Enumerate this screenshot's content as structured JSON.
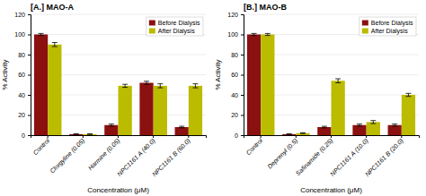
{
  "chart_data": [
    {
      "type": "bar",
      "title": "[A.] MAO-A",
      "categories": [
        "Control",
        "Clorgyline (0.05)",
        "Harmine (0.05)",
        "NPC1161 A (40.0)",
        "NPC1161 B (60.0)"
      ],
      "series": [
        {
          "name": "Before Dialysis",
          "color": "#8B1010",
          "values": [
            100,
            1,
            10,
            52,
            8
          ],
          "errors": [
            1.0,
            0.3,
            1.0,
            1.5,
            0.8
          ]
        },
        {
          "name": "After Dialysis",
          "color": "#BBBB00",
          "values": [
            90,
            1,
            49,
            49,
            49
          ],
          "errors": [
            2.0,
            0.3,
            1.5,
            2.0,
            2.0
          ]
        }
      ],
      "xlabel": "Concentration (μM)",
      "ylabel": "% Activity",
      "ylim": [
        0,
        120
      ],
      "yticks": [
        0,
        20,
        40,
        60,
        80,
        100,
        120
      ],
      "grid": true,
      "legend": "upper right"
    },
    {
      "type": "bar",
      "title": "[B.] MAO-B",
      "categories": [
        "Control",
        "Deprenyl (0.5)",
        "Safinamide (0.25)",
        "NPC1161 A (10.0)",
        "NPC1161 B (20.0)"
      ],
      "series": [
        {
          "name": "Before Dialysis",
          "color": "#8B1010",
          "values": [
            100,
            1,
            8,
            10,
            10
          ],
          "errors": [
            1.0,
            0.3,
            0.8,
            1.0,
            1.0
          ]
        },
        {
          "name": "After Dialysis",
          "color": "#BBBB00",
          "values": [
            100,
            2,
            54,
            13,
            40
          ],
          "errors": [
            1.0,
            0.4,
            2.0,
            1.5,
            1.5
          ]
        }
      ],
      "xlabel": "Concentration (μM)",
      "ylabel": "% Activity",
      "ylim": [
        0,
        120
      ],
      "yticks": [
        0,
        20,
        40,
        60,
        80,
        100,
        120
      ],
      "grid": true,
      "legend": "upper right"
    }
  ]
}
